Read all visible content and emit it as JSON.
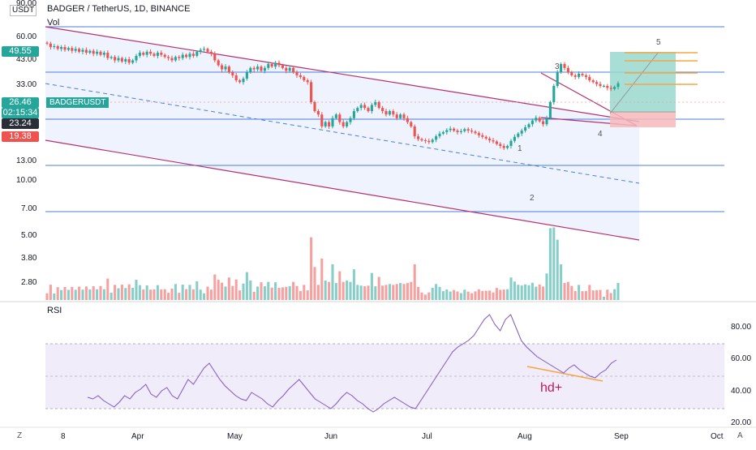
{
  "header": {
    "currency": "USDT",
    "top_price": "90.00",
    "title": "BADGER / TetherUS, 1D, BINANCE",
    "volume_label": "Vol"
  },
  "price_axis": {
    "ticks": [
      "60.00",
      "49.55",
      "43.00",
      "33.00",
      "26.46",
      "23.24",
      "19.38",
      "13.00",
      "10.00",
      "7.00",
      "5.00",
      "3.80",
      "2.80"
    ],
    "badges": [
      {
        "text": "49.55",
        "color": "#26a69a"
      },
      {
        "text": "26.46",
        "color": "#26a69a"
      },
      {
        "text": "02:15:34",
        "color": "#26a69a"
      },
      {
        "text": "23.24",
        "color": "#2a2e39"
      },
      {
        "text": "19.38",
        "color": "#ef5350"
      }
    ],
    "symbol_tag": "BADGERUSDT"
  },
  "rsi": {
    "label": "RSI",
    "ticks": [
      "80.00",
      "60.00",
      "40.00",
      "20.00"
    ],
    "upper": 70,
    "lower": 30,
    "mid": 50,
    "annotation": "hd+"
  },
  "time_axis": {
    "labels": [
      "8",
      "Apr",
      "May",
      "Jun",
      "Jul",
      "Aug",
      "Sep",
      "Oct"
    ]
  },
  "bottom_icons": {
    "left": "Z",
    "right": "A"
  },
  "wave_labels": [
    "1",
    "2",
    "3",
    "4",
    "5"
  ],
  "colors": {
    "up": "#26a69a",
    "down": "#ef5350",
    "channel": "#b6306e",
    "hline": "#4a7de0",
    "rsi_line": "#7e57c2",
    "rsi_band": "#f1ecfa",
    "channel_fill": "#eef3fd",
    "tp_zone": "#9ad8cf",
    "sl_zone": "#f6b9bb",
    "target": "#f7a541",
    "divergence": "#f7a541"
  },
  "chart_data": {
    "type": "candlestick",
    "title": "BADGER / TetherUS, 1D, BINANCE",
    "scale": "log",
    "ylim": [
      2.5,
      90
    ],
    "xlabel": "",
    "ylabel": "",
    "series": [
      {
        "name": "BADGERUSDT",
        "close": [
          59,
          55,
          56,
          53,
          55,
          52,
          54,
          51,
          53,
          50,
          52,
          49,
          51,
          48,
          50,
          47,
          49,
          44,
          45,
          42,
          44,
          41,
          43,
          40,
          42,
          46,
          49,
          47,
          50,
          48,
          46,
          49,
          47,
          45,
          44,
          42,
          45,
          44,
          47,
          45,
          48,
          46,
          50,
          52,
          53,
          50,
          48,
          42,
          38,
          35,
          37,
          33,
          31,
          28,
          27,
          29,
          33,
          36,
          35,
          37,
          34,
          36,
          39,
          37,
          40,
          38,
          36,
          34,
          36,
          33,
          31,
          30,
          28,
          27,
          18,
          15,
          14,
          11,
          12,
          11,
          13,
          14,
          12,
          11,
          12,
          13,
          15,
          16,
          17,
          16,
          15,
          17,
          18,
          16,
          15,
          14,
          15,
          14,
          13,
          14,
          13,
          12,
          11,
          9,
          8.5,
          8.3,
          8.2,
          8.0,
          8.4,
          9.0,
          9.5,
          9.8,
          10.2,
          10.5,
          10.1,
          9.8,
          10.0,
          10.4,
          10.1,
          9.9,
          9.6,
          9.2,
          8.9,
          8.6,
          8.3,
          8.1,
          7.7,
          7.4,
          7.1,
          7.4,
          8.2,
          8.9,
          9.5,
          10.1,
          10.8,
          11.5,
          12.4,
          13.1,
          12.2,
          11.5,
          13.0,
          18,
          25,
          33,
          39,
          36,
          33,
          31,
          30,
          32,
          31,
          30,
          28,
          27,
          26,
          25,
          25,
          24,
          23.5,
          24.5,
          26.4
        ]
      },
      {
        "name": "RSI",
        "values": [
          37,
          36,
          38,
          35,
          33,
          31,
          34,
          38,
          36,
          40,
          42,
          45,
          39,
          37,
          41,
          43,
          38,
          36,
          42,
          48,
          45,
          50,
          55,
          58,
          53,
          48,
          44,
          41,
          38,
          36,
          35,
          40,
          38,
          36,
          33,
          31,
          35,
          38,
          42,
          45,
          48,
          44,
          40,
          36,
          34,
          32,
          30,
          33,
          37,
          40,
          38,
          35,
          33,
          30,
          28,
          30,
          33,
          35,
          37,
          35,
          33,
          31,
          30,
          35,
          40,
          45,
          50,
          55,
          60,
          65,
          68,
          70,
          72,
          75,
          80,
          85,
          88,
          82,
          78,
          85,
          88,
          80,
          72,
          68,
          65,
          62,
          60,
          58,
          56,
          54,
          52,
          55,
          57,
          54,
          52,
          50,
          49,
          52,
          54,
          58,
          60
        ]
      }
    ],
    "volume": {
      "name": "Vol"
    },
    "channel": "descending",
    "levels": [
      77.5,
      36,
      23.24,
      12.3,
      6.9
    ]
  }
}
